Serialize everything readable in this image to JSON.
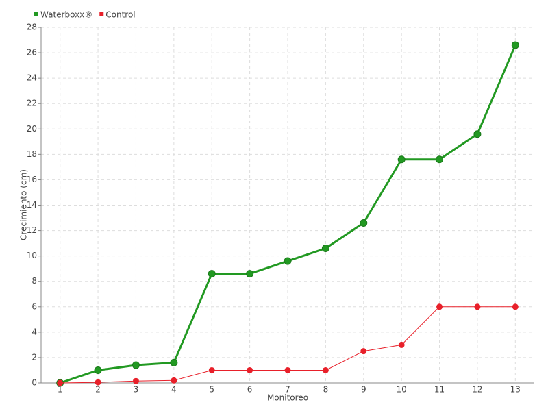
{
  "chart_data": {
    "type": "line",
    "xlabel": "Monitoreo",
    "ylabel": "Crecimiento (cm)",
    "categories": [
      "1",
      "2",
      "3",
      "4",
      "5",
      "6",
      "7",
      "8",
      "9",
      "10",
      "11",
      "12",
      "13"
    ],
    "series": [
      {
        "name": "Waterboxx®",
        "color": "#229922",
        "values": [
          0,
          1,
          1.4,
          1.6,
          8.6,
          8.6,
          9.6,
          10.6,
          12.6,
          17.6,
          17.6,
          19.6,
          26.6
        ]
      },
      {
        "name": "Control",
        "color": "#e8202a",
        "values": [
          0,
          0.05,
          0.15,
          0.2,
          1,
          1,
          1,
          1,
          2.5,
          3,
          6,
          6,
          6
        ]
      }
    ],
    "ylim": [
      0,
      28
    ],
    "yticks": [
      0,
      2,
      4,
      6,
      8,
      10,
      12,
      14,
      16,
      18,
      20,
      22,
      24,
      26,
      28
    ],
    "grid": true,
    "legend": "top-left"
  }
}
